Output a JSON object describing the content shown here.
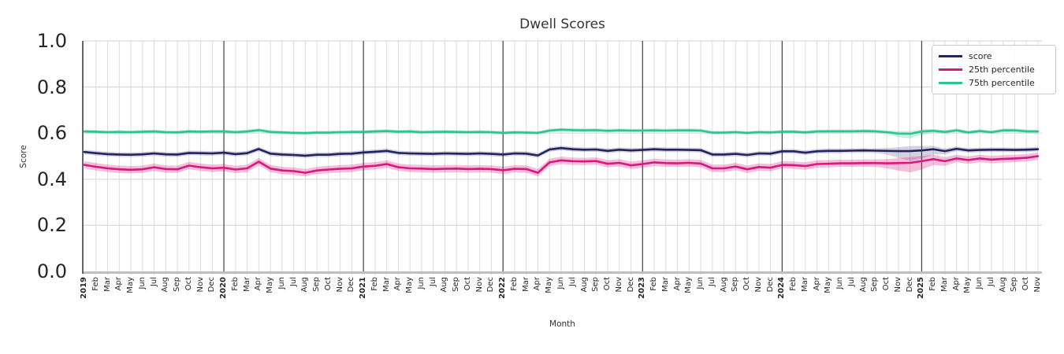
{
  "chart_data": {
    "type": "line",
    "title": "Dwell Scores",
    "xlabel": "Month",
    "ylabel": "Score",
    "ylim": [
      0.0,
      1.0
    ],
    "yticks": [
      0.0,
      0.2,
      0.4,
      0.6,
      0.8,
      1.0
    ],
    "grid": true,
    "legend_position": "upper right",
    "x_start": "2019-01",
    "x_end": "2025-11",
    "x_labels": [
      "2019",
      "Feb",
      "Mar",
      "Apr",
      "May",
      "Jun",
      "Jul",
      "Aug",
      "Sep",
      "Oct",
      "Nov",
      "Dec",
      "2020",
      "Feb",
      "Mar",
      "Apr",
      "May",
      "Jun",
      "Jul",
      "Aug",
      "Sep",
      "Oct",
      "Nov",
      "Dec",
      "2021",
      "Feb",
      "Mar",
      "Apr",
      "May",
      "Jun",
      "Jul",
      "Aug",
      "Sep",
      "Oct",
      "Nov",
      "Dec",
      "2022",
      "Feb",
      "Mar",
      "Apr",
      "May",
      "Jun",
      "Jul",
      "Aug",
      "Sep",
      "Oct",
      "Nov",
      "Dec",
      "2023",
      "Feb",
      "Mar",
      "Apr",
      "May",
      "Jun",
      "Jul",
      "Aug",
      "Sep",
      "Oct",
      "Nov",
      "Dec",
      "2024",
      "Feb",
      "Mar",
      "Apr",
      "May",
      "Jun",
      "Jul",
      "Aug",
      "Sep",
      "Oct",
      "Nov",
      "Dec",
      "2025",
      "Feb",
      "Mar",
      "Apr",
      "May",
      "Jun",
      "Jul",
      "Aug",
      "Sep",
      "Oct",
      "Nov"
    ],
    "series": [
      {
        "name": "score",
        "color": "#23245f",
        "band_halfwidth": 0.01,
        "band_opacity": 0.2,
        "band_extra": {
          "69": 0.006,
          "70": 0.02,
          "71": 0.032,
          "72": 0.026,
          "73": 0.012,
          "74": 0.004
        },
        "values": [
          0.518,
          0.513,
          0.509,
          0.507,
          0.506,
          0.508,
          0.512,
          0.508,
          0.507,
          0.514,
          0.513,
          0.512,
          0.515,
          0.509,
          0.513,
          0.531,
          0.511,
          0.507,
          0.505,
          0.502,
          0.506,
          0.506,
          0.51,
          0.511,
          0.516,
          0.519,
          0.523,
          0.514,
          0.512,
          0.511,
          0.51,
          0.512,
          0.511,
          0.51,
          0.512,
          0.51,
          0.507,
          0.512,
          0.511,
          0.503,
          0.529,
          0.535,
          0.53,
          0.528,
          0.529,
          0.523,
          0.528,
          0.525,
          0.527,
          0.53,
          0.528,
          0.528,
          0.527,
          0.526,
          0.507,
          0.507,
          0.51,
          0.505,
          0.512,
          0.511,
          0.521,
          0.521,
          0.515,
          0.521,
          0.523,
          0.523,
          0.524,
          0.525,
          0.524,
          0.523,
          0.522,
          0.522,
          0.525,
          0.53,
          0.522,
          0.532,
          0.525,
          0.527,
          0.528,
          0.528,
          0.527,
          0.528,
          0.53
        ]
      },
      {
        "name": "25th percentile",
        "color": "#d7197f",
        "band_halfwidth": 0.016,
        "band_opacity": 0.28,
        "band_extra": {
          "69": 0.006,
          "70": 0.016,
          "71": 0.026,
          "72": 0.02,
          "73": 0.01,
          "74": 0.004
        },
        "values": [
          0.462,
          0.454,
          0.447,
          0.443,
          0.441,
          0.443,
          0.452,
          0.444,
          0.443,
          0.459,
          0.452,
          0.447,
          0.45,
          0.442,
          0.447,
          0.476,
          0.446,
          0.438,
          0.435,
          0.428,
          0.438,
          0.442,
          0.445,
          0.447,
          0.455,
          0.458,
          0.466,
          0.452,
          0.447,
          0.446,
          0.444,
          0.445,
          0.446,
          0.444,
          0.445,
          0.444,
          0.439,
          0.445,
          0.444,
          0.428,
          0.473,
          0.482,
          0.478,
          0.477,
          0.479,
          0.467,
          0.471,
          0.46,
          0.466,
          0.473,
          0.47,
          0.469,
          0.471,
          0.468,
          0.447,
          0.447,
          0.455,
          0.443,
          0.453,
          0.45,
          0.462,
          0.461,
          0.457,
          0.466,
          0.467,
          0.469,
          0.469,
          0.47,
          0.47,
          0.469,
          0.47,
          0.471,
          0.478,
          0.487,
          0.478,
          0.49,
          0.483,
          0.49,
          0.485,
          0.488,
          0.49,
          0.493,
          0.5
        ]
      },
      {
        "name": "75th percentile",
        "color": "#2cc590",
        "band_halfwidth": 0.008,
        "band_opacity": 0.25,
        "band_extra": {
          "70": 0.008,
          "71": 0.012,
          "72": 0.006
        },
        "values": [
          0.607,
          0.606,
          0.604,
          0.605,
          0.604,
          0.606,
          0.607,
          0.604,
          0.603,
          0.607,
          0.606,
          0.607,
          0.607,
          0.604,
          0.607,
          0.613,
          0.605,
          0.603,
          0.601,
          0.6,
          0.602,
          0.602,
          0.604,
          0.605,
          0.605,
          0.607,
          0.609,
          0.606,
          0.607,
          0.604,
          0.605,
          0.606,
          0.605,
          0.604,
          0.605,
          0.604,
          0.601,
          0.603,
          0.602,
          0.601,
          0.611,
          0.615,
          0.613,
          0.612,
          0.613,
          0.61,
          0.612,
          0.611,
          0.611,
          0.612,
          0.611,
          0.612,
          0.612,
          0.611,
          0.602,
          0.602,
          0.604,
          0.601,
          0.604,
          0.603,
          0.606,
          0.606,
          0.603,
          0.607,
          0.608,
          0.608,
          0.608,
          0.609,
          0.608,
          0.604,
          0.598,
          0.597,
          0.607,
          0.61,
          0.605,
          0.612,
          0.603,
          0.609,
          0.604,
          0.612,
          0.612,
          0.608,
          0.607
        ]
      }
    ]
  }
}
